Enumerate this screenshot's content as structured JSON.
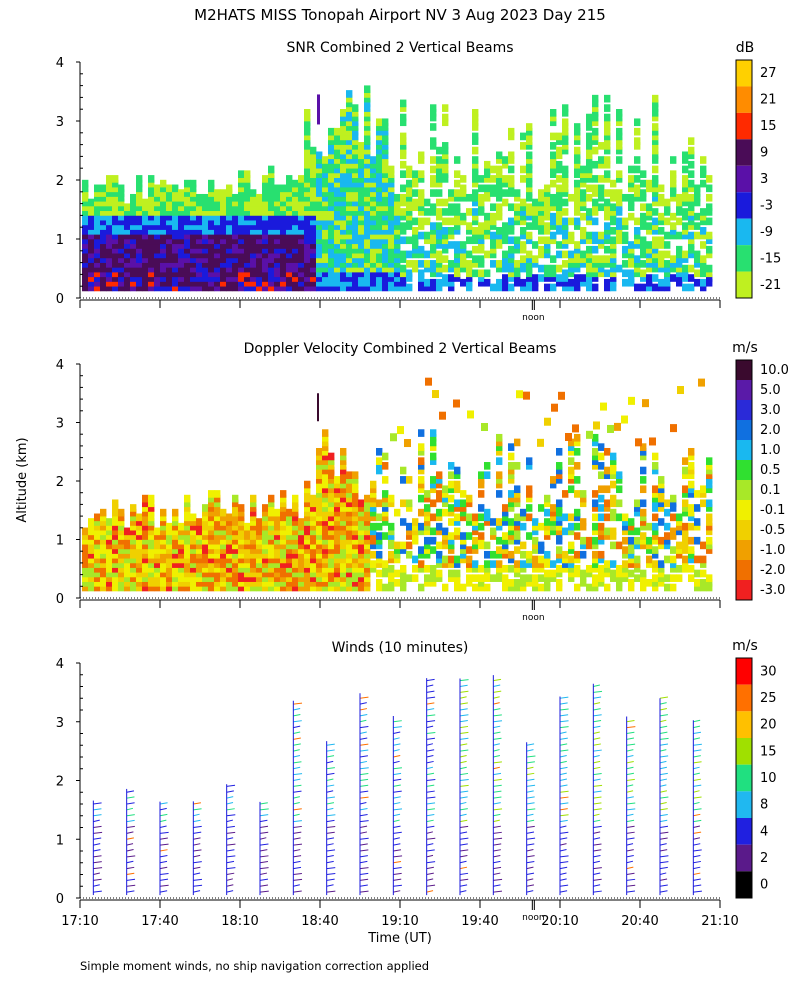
{
  "title": "M2HATS MISS Tonopah Airport NV   3 Aug 2023 Day 215",
  "y_axis_label": "Altitude (km)",
  "x_axis_label": "Time (UT)",
  "footnote": "Simple moment winds, no ship navigation correction applied",
  "noon_label": "noon",
  "chart_data": [
    {
      "type": "heatmap",
      "title": "SNR Combined 2 Vertical Beams",
      "colorbar_unit": "dB",
      "colorbar_ticks": [
        "27",
        "21",
        "15",
        "9",
        "3",
        "-3",
        "-9",
        "-15",
        "-21"
      ],
      "colorbar_colors": [
        "#ffd000",
        "#ff8c00",
        "#ff2a00",
        "#4a0c57",
        "#5a10a8",
        "#1a1adc",
        "#19b8f0",
        "#28e070",
        "#bff020"
      ],
      "ylim": [
        0,
        4
      ],
      "y_ticks": [
        "0",
        "1",
        "2",
        "3",
        "4"
      ],
      "xlim": [
        "17:10",
        "21:10"
      ]
    },
    {
      "type": "heatmap",
      "title": "Doppler Velocity Combined 2 Vertical Beams",
      "colorbar_unit": "m/s",
      "colorbar_ticks": [
        "10.0",
        "5.0",
        "3.0",
        "2.0",
        "1.0",
        "0.5",
        "0.1",
        "-0.1",
        "-0.5",
        "-1.0",
        "-2.0",
        "-3.0"
      ],
      "colorbar_colors": [
        "#3a0a2e",
        "#5a1aa8",
        "#2a2ad8",
        "#1070e0",
        "#19b8f0",
        "#30e030",
        "#a8e828",
        "#f0f000",
        "#f0d000",
        "#f0a000",
        "#f07000",
        "#f02020"
      ],
      "ylim": [
        0,
        4
      ],
      "y_ticks": [
        "0",
        "1",
        "2",
        "3",
        "4"
      ],
      "xlim": [
        "17:10",
        "21:10"
      ]
    },
    {
      "type": "wind-barbs",
      "title": "Winds (10 minutes)",
      "colorbar_unit": "m/s",
      "colorbar_ticks": [
        "30",
        "25",
        "20",
        "15",
        "10",
        "8",
        "4",
        "2",
        "0"
      ],
      "colorbar_colors": [
        "#ff0000",
        "#ff7000",
        "#ffc000",
        "#a0e000",
        "#20e080",
        "#20b8f0",
        "#2020e0",
        "#5a1a8a",
        "#000000"
      ],
      "ylim": [
        0,
        4
      ],
      "y_ticks": [
        "0",
        "1",
        "2",
        "3",
        "4"
      ],
      "x_ticks": [
        "17:10",
        "17:40",
        "18:10",
        "18:40",
        "19:10",
        "19:40",
        "20:10",
        "20:40",
        "21:10"
      ],
      "xlim": [
        "17:10",
        "21:10"
      ]
    }
  ]
}
